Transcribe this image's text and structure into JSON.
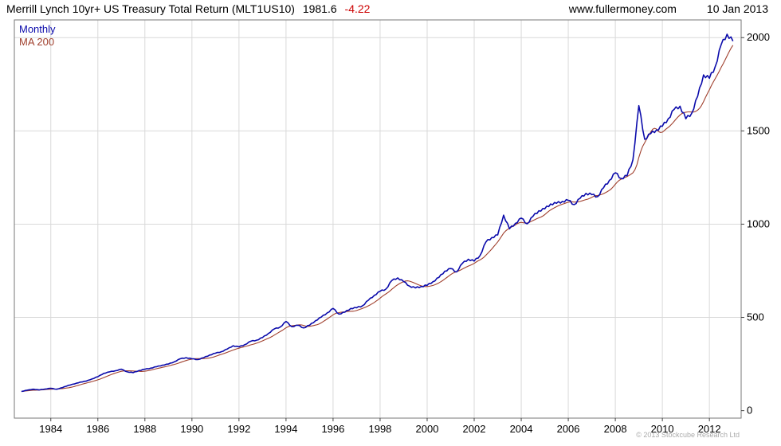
{
  "header": {
    "title": "Merrill Lynch 10yr+ US Treasury Total Return (MLT1US10)",
    "last_value": "1981.6",
    "change": "-4.22",
    "website": "www.fullermoney.com",
    "date": "10 Jan 2013"
  },
  "legend": {
    "timeframe": "Monthly",
    "ma": "MA 200"
  },
  "footer": {
    "copyright": "© 2013 Stockcube Research Ltd"
  },
  "colors": {
    "price": "#0b0bab",
    "ma": "#a0402e",
    "change": "#cc0000",
    "grid": "#d9d9d9",
    "border": "#777777",
    "tick": "#444444",
    "axis_text": "#000000"
  },
  "chart_data": {
    "type": "line",
    "title": "Merrill Lynch 10yr+ US Treasury Total Return (MLT1US10)",
    "xlabel": "",
    "ylabel": "",
    "legend_position": "top-left",
    "grid": true,
    "x_ticks": [
      1984,
      1986,
      1988,
      1990,
      1992,
      1994,
      1996,
      1998,
      2000,
      2002,
      2004,
      2006,
      2008,
      2010,
      2012
    ],
    "y_ticks": [
      0,
      500,
      1000,
      1500,
      2000
    ],
    "x_range": [
      1982.45,
      2013.35
    ],
    "y_range": [
      -40,
      2095
    ],
    "x_start": 1982.75,
    "x_step": 0.25,
    "last_value": 1981.6,
    "change": -4.22,
    "series": [
      {
        "name": "Monthly",
        "color": "#0b0bab",
        "values": [
          103,
          110,
          115,
          111,
          116,
          120,
          115,
          124,
          136,
          143,
          153,
          158,
          170,
          182,
          200,
          208,
          214,
          222,
          208,
          204,
          215,
          222,
          228,
          236,
          244,
          250,
          262,
          278,
          284,
          278,
          274,
          284,
          298,
          308,
          316,
          330,
          348,
          342,
          354,
          372,
          378,
          392,
          414,
          438,
          448,
          478,
          450,
          458,
          444,
          458,
          482,
          502,
          524,
          548,
          518,
          528,
          548,
          552,
          562,
          592,
          618,
          640,
          652,
          698,
          712,
          692,
          668,
          658,
          666,
          672,
          692,
          714,
          748,
          762,
          744,
          790,
          812,
          802,
          832,
          905,
          928,
          942,
          1048,
          975,
          1004,
          1032,
          1002,
          1042,
          1072,
          1082,
          1108,
          1112,
          1122,
          1128,
          1105,
          1138,
          1165,
          1158,
          1148,
          1195,
          1235,
          1275,
          1245,
          1260,
          1345,
          1635,
          1455,
          1485,
          1505,
          1525,
          1565,
          1615,
          1632,
          1565,
          1595,
          1685,
          1800,
          1782,
          1845,
          1962,
          2018,
          1981.6
        ]
      },
      {
        "name": "MA 200",
        "color": "#a0402e",
        "derived": "trailing_mean",
        "window_points": 10
      }
    ]
  }
}
